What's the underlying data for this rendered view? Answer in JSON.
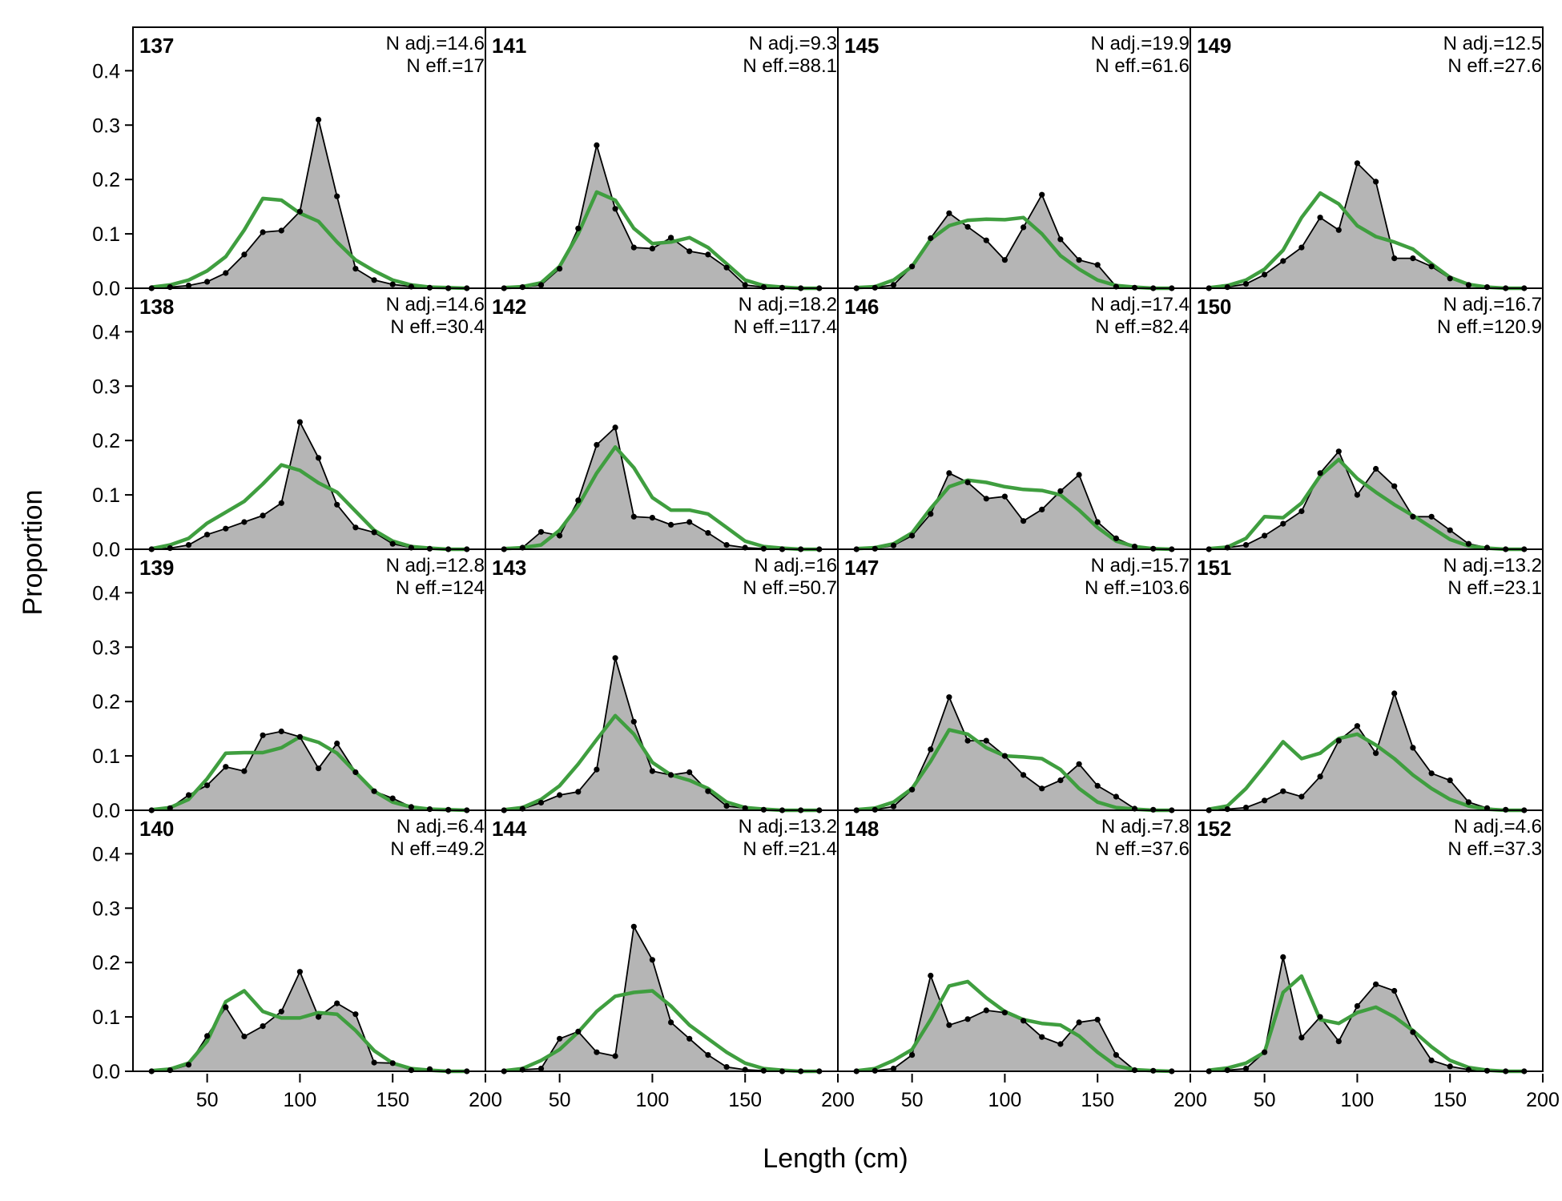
{
  "chart_data": {
    "type": "area",
    "xlabel": "Length (cm)",
    "ylabel": "Proportion",
    "xlim": [
      10,
      200
    ],
    "ylim": [
      0,
      0.48
    ],
    "x_ticks": [
      50,
      100,
      150,
      200
    ],
    "y_ticks": [
      0.0,
      0.1,
      0.2,
      0.3,
      0.4
    ],
    "y_tick_labels": [
      "0.0",
      "0.1",
      "0.2",
      "0.3",
      "0.4"
    ],
    "grid": false,
    "x": [
      20,
      30,
      40,
      50,
      60,
      70,
      80,
      90,
      100,
      110,
      120,
      130,
      140,
      150,
      160,
      170,
      180,
      190
    ],
    "colors": {
      "observed_fill": "#b5b5b5",
      "observed_line": "#000000",
      "expected_line": "#3f9e3f",
      "zero_line": "#bdbdbd"
    },
    "panels": [
      {
        "id": "137",
        "n_adj": "N adj.=14.6",
        "n_eff": "N eff.=17",
        "observed": [
          0,
          0.002,
          0.005,
          0.012,
          0.028,
          0.062,
          0.103,
          0.106,
          0.141,
          0.31,
          0.169,
          0.036,
          0.015,
          0.007,
          0.003,
          0.001,
          0,
          0
        ],
        "expected": [
          0.002,
          0.006,
          0.015,
          0.032,
          0.058,
          0.107,
          0.165,
          0.162,
          0.138,
          0.123,
          0.085,
          0.052,
          0.032,
          0.015,
          0.006,
          0.002,
          0.001,
          0
        ]
      },
      {
        "id": "138",
        "n_adj": "N adj.=14.6",
        "n_eff": "N eff.=30.4",
        "observed": [
          0,
          0.002,
          0.008,
          0.027,
          0.038,
          0.05,
          0.062,
          0.085,
          0.234,
          0.168,
          0.082,
          0.04,
          0.031,
          0.01,
          0.003,
          0.001,
          0,
          0
        ],
        "expected": [
          0.001,
          0.008,
          0.02,
          0.048,
          0.068,
          0.088,
          0.12,
          0.155,
          0.145,
          0.122,
          0.105,
          0.07,
          0.035,
          0.015,
          0.005,
          0.002,
          0,
          0
        ]
      },
      {
        "id": "139",
        "n_adj": "N adj.=12.8",
        "n_eff": "N eff.=124",
        "observed": [
          0,
          0.004,
          0.028,
          0.046,
          0.08,
          0.072,
          0.138,
          0.145,
          0.135,
          0.077,
          0.123,
          0.07,
          0.035,
          0.022,
          0.006,
          0.002,
          0.001,
          0
        ],
        "expected": [
          0.001,
          0.005,
          0.02,
          0.058,
          0.105,
          0.106,
          0.106,
          0.115,
          0.135,
          0.125,
          0.105,
          0.07,
          0.035,
          0.015,
          0.006,
          0.002,
          0.001,
          0
        ]
      },
      {
        "id": "140",
        "n_adj": "N adj.=6.4",
        "n_eff": "N eff.=49.2",
        "observed": [
          0,
          0.002,
          0.012,
          0.065,
          0.118,
          0.064,
          0.083,
          0.11,
          0.183,
          0.1,
          0.125,
          0.105,
          0.016,
          0.015,
          0.002,
          0.004,
          0,
          0
        ],
        "expected": [
          0.001,
          0.004,
          0.015,
          0.055,
          0.128,
          0.148,
          0.11,
          0.098,
          0.098,
          0.108,
          0.105,
          0.075,
          0.038,
          0.015,
          0.005,
          0.002,
          0,
          0
        ]
      },
      {
        "id": "141",
        "n_adj": "N adj.=9.3",
        "n_eff": "N eff.=88.1",
        "observed": [
          0,
          0.002,
          0.006,
          0.036,
          0.11,
          0.263,
          0.146,
          0.075,
          0.073,
          0.093,
          0.068,
          0.062,
          0.038,
          0.006,
          0.002,
          0.001,
          0,
          0
        ],
        "expected": [
          0.001,
          0.003,
          0.01,
          0.04,
          0.1,
          0.177,
          0.162,
          0.11,
          0.082,
          0.085,
          0.093,
          0.075,
          0.045,
          0.015,
          0.005,
          0.002,
          0,
          0
        ]
      },
      {
        "id": "142",
        "n_adj": "N adj.=18.2",
        "n_eff": "N eff.=117.4",
        "observed": [
          0,
          0.003,
          0.032,
          0.025,
          0.09,
          0.192,
          0.224,
          0.06,
          0.058,
          0.045,
          0.05,
          0.03,
          0.008,
          0.003,
          0.001,
          0,
          0,
          0
        ],
        "expected": [
          0.001,
          0.003,
          0.008,
          0.035,
          0.08,
          0.14,
          0.188,
          0.15,
          0.095,
          0.072,
          0.072,
          0.065,
          0.04,
          0.015,
          0.005,
          0.002,
          0,
          0
        ]
      },
      {
        "id": "143",
        "n_adj": "N adj.=16",
        "n_eff": "N eff.=50.7",
        "observed": [
          0,
          0.003,
          0.014,
          0.028,
          0.034,
          0.075,
          0.28,
          0.163,
          0.072,
          0.065,
          0.07,
          0.035,
          0.008,
          0.004,
          0.001,
          0,
          0,
          0
        ],
        "expected": [
          0.001,
          0.005,
          0.02,
          0.045,
          0.085,
          0.13,
          0.174,
          0.14,
          0.088,
          0.065,
          0.055,
          0.04,
          0.015,
          0.005,
          0.002,
          0,
          0,
          0
        ]
      },
      {
        "id": "144",
        "n_adj": "N adj.=13.2",
        "n_eff": "N eff.=21.4",
        "observed": [
          0,
          0.003,
          0.005,
          0.06,
          0.073,
          0.035,
          0.028,
          0.266,
          0.205,
          0.09,
          0.06,
          0.03,
          0.008,
          0.003,
          0.001,
          0,
          0,
          0
        ],
        "expected": [
          0.001,
          0.005,
          0.02,
          0.04,
          0.072,
          0.11,
          0.138,
          0.145,
          0.148,
          0.12,
          0.085,
          0.06,
          0.035,
          0.015,
          0.005,
          0.002,
          0,
          0
        ]
      },
      {
        "id": "145",
        "n_adj": "N adj.=19.9",
        "n_eff": "N eff.=61.6",
        "observed": [
          0,
          0.001,
          0.006,
          0.04,
          0.092,
          0.138,
          0.113,
          0.088,
          0.052,
          0.112,
          0.172,
          0.09,
          0.052,
          0.043,
          0.003,
          0.001,
          0,
          0
        ],
        "expected": [
          0.001,
          0.003,
          0.015,
          0.04,
          0.09,
          0.115,
          0.125,
          0.127,
          0.126,
          0.13,
          0.1,
          0.06,
          0.035,
          0.015,
          0.005,
          0.002,
          0,
          0
        ]
      },
      {
        "id": "146",
        "n_adj": "N adj.=17.4",
        "n_eff": "N eff.=82.4",
        "observed": [
          0,
          0.001,
          0.007,
          0.025,
          0.065,
          0.14,
          0.123,
          0.093,
          0.097,
          0.052,
          0.073,
          0.107,
          0.137,
          0.05,
          0.02,
          0.005,
          0.001,
          0
        ],
        "expected": [
          0.001,
          0.003,
          0.01,
          0.03,
          0.075,
          0.115,
          0.127,
          0.123,
          0.115,
          0.11,
          0.108,
          0.1,
          0.072,
          0.04,
          0.015,
          0.005,
          0.001,
          0
        ]
      },
      {
        "id": "147",
        "n_adj": "N adj.=15.7",
        "n_eff": "N eff.=103.6",
        "observed": [
          0,
          0.001,
          0.007,
          0.038,
          0.112,
          0.208,
          0.128,
          0.128,
          0.1,
          0.065,
          0.04,
          0.055,
          0.085,
          0.045,
          0.025,
          0.003,
          0.001,
          0
        ],
        "expected": [
          0.001,
          0.004,
          0.015,
          0.04,
          0.09,
          0.148,
          0.14,
          0.115,
          0.1,
          0.098,
          0.095,
          0.075,
          0.04,
          0.015,
          0.005,
          0.002,
          0,
          0
        ]
      },
      {
        "id": "148",
        "n_adj": "N adj.=7.8",
        "n_eff": "N eff.=37.6",
        "observed": [
          0,
          0.001,
          0.005,
          0.03,
          0.176,
          0.085,
          0.096,
          0.112,
          0.108,
          0.093,
          0.063,
          0.05,
          0.09,
          0.095,
          0.03,
          0.002,
          0.001,
          0
        ],
        "expected": [
          0.001,
          0.005,
          0.02,
          0.04,
          0.095,
          0.157,
          0.165,
          0.135,
          0.11,
          0.095,
          0.088,
          0.085,
          0.065,
          0.035,
          0.01,
          0.003,
          0.001,
          0
        ]
      },
      {
        "id": "149",
        "n_adj": "N adj.=12.5",
        "n_eff": "N eff.=27.6",
        "observed": [
          0,
          0.002,
          0.008,
          0.025,
          0.05,
          0.075,
          0.13,
          0.107,
          0.23,
          0.196,
          0.055,
          0.055,
          0.04,
          0.018,
          0.006,
          0.002,
          0,
          0
        ],
        "expected": [
          0.001,
          0.005,
          0.015,
          0.035,
          0.07,
          0.13,
          0.175,
          0.155,
          0.115,
          0.095,
          0.085,
          0.072,
          0.045,
          0.02,
          0.007,
          0.002,
          0,
          0
        ]
      },
      {
        "id": "150",
        "n_adj": "N adj.=16.7",
        "n_eff": "N eff.=120.9",
        "observed": [
          0,
          0.003,
          0.008,
          0.025,
          0.047,
          0.07,
          0.14,
          0.18,
          0.1,
          0.148,
          0.116,
          0.06,
          0.06,
          0.035,
          0.01,
          0.003,
          0,
          0
        ],
        "expected": [
          0.001,
          0.004,
          0.02,
          0.06,
          0.058,
          0.085,
          0.135,
          0.165,
          0.13,
          0.105,
          0.082,
          0.062,
          0.04,
          0.018,
          0.006,
          0.002,
          0,
          0
        ]
      },
      {
        "id": "151",
        "n_adj": "N adj.=13.2",
        "n_eff": "N eff.=23.1",
        "observed": [
          0,
          0.002,
          0.005,
          0.018,
          0.035,
          0.025,
          0.062,
          0.128,
          0.155,
          0.105,
          0.215,
          0.115,
          0.068,
          0.055,
          0.015,
          0.004,
          0.001,
          0
        ],
        "expected": [
          0.002,
          0.008,
          0.04,
          0.082,
          0.126,
          0.095,
          0.105,
          0.132,
          0.14,
          0.12,
          0.095,
          0.065,
          0.04,
          0.02,
          0.008,
          0.002,
          0,
          0
        ]
      },
      {
        "id": "152",
        "n_adj": "N adj.=4.6",
        "n_eff": "N eff.=37.3",
        "observed": [
          0,
          0.002,
          0.005,
          0.035,
          0.21,
          0.062,
          0.1,
          0.055,
          0.12,
          0.16,
          0.148,
          0.072,
          0.02,
          0.009,
          0.003,
          0.001,
          0,
          0
        ],
        "expected": [
          0.002,
          0.006,
          0.015,
          0.035,
          0.145,
          0.175,
          0.095,
          0.088,
          0.108,
          0.118,
          0.1,
          0.075,
          0.045,
          0.02,
          0.007,
          0.002,
          0,
          0
        ]
      }
    ]
  }
}
